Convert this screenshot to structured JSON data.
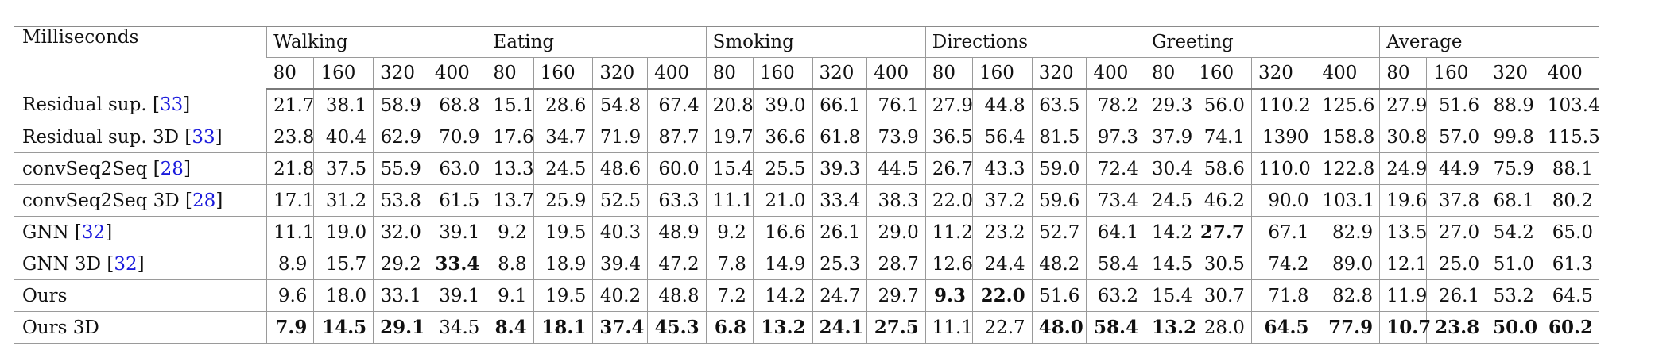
{
  "table": {
    "corner_label": "Milliseconds",
    "groups": [
      "Walking",
      "Eating",
      "Smoking",
      "Directions",
      "Greeting",
      "Average"
    ],
    "timesteps": [
      "80",
      "160",
      "320",
      "400"
    ],
    "rows": [
      {
        "name": "Residual sup.",
        "ref": "33",
        "values": [
          "21.7",
          "38.1",
          "58.9",
          "68.8",
          "15.1",
          "28.6",
          "54.8",
          "67.4",
          "20.8",
          "39.0",
          "66.1",
          "76.1",
          "27.9",
          "44.8",
          "63.5",
          "78.2",
          "29.3",
          "56.0",
          "110.2",
          "125.6",
          "27.9",
          "51.6",
          "88.9",
          "103.4"
        ],
        "bold": []
      },
      {
        "name": "Residual sup. 3D",
        "ref": "33",
        "values": [
          "23.8",
          "40.4",
          "62.9",
          "70.9",
          "17.6",
          "34.7",
          "71.9",
          "87.7",
          "19.7",
          "36.6",
          "61.8",
          "73.9",
          "36.5",
          "56.4",
          "81.5",
          "97.3",
          "37.9",
          "74.1",
          "1390",
          "158.8",
          "30.8",
          "57.0",
          "99.8",
          "115.5"
        ],
        "bold": []
      },
      {
        "name": "convSeq2Seq",
        "ref": "28",
        "values": [
          "21.8",
          "37.5",
          "55.9",
          "63.0",
          "13.3",
          "24.5",
          "48.6",
          "60.0",
          "15.4",
          "25.5",
          "39.3",
          "44.5",
          "26.7",
          "43.3",
          "59.0",
          "72.4",
          "30.4",
          "58.6",
          "110.0",
          "122.8",
          "24.9",
          "44.9",
          "75.9",
          "88.1"
        ],
        "bold": []
      },
      {
        "name": "convSeq2Seq 3D",
        "ref": "28",
        "values": [
          "17.1",
          "31.2",
          "53.8",
          "61.5",
          "13.7",
          "25.9",
          "52.5",
          "63.3",
          "11.1",
          "21.0",
          "33.4",
          "38.3",
          "22.0",
          "37.2",
          "59.6",
          "73.4",
          "24.5",
          "46.2",
          "90.0",
          "103.1",
          "19.6",
          "37.8",
          "68.1",
          "80.2"
        ],
        "bold": []
      },
      {
        "name": "GNN",
        "ref": "32",
        "values": [
          "11.1",
          "19.0",
          "32.0",
          "39.1",
          "9.2",
          "19.5",
          "40.3",
          "48.9",
          "9.2",
          "16.6",
          "26.1",
          "29.0",
          "11.2",
          "23.2",
          "52.7",
          "64.1",
          "14.2",
          "27.7",
          "67.1",
          "82.9",
          "13.5",
          "27.0",
          "54.2",
          "65.0"
        ],
        "bold": [
          17
        ]
      },
      {
        "name": "GNN 3D",
        "ref": "32",
        "values": [
          "8.9",
          "15.7",
          "29.2",
          "33.4",
          "8.8",
          "18.9",
          "39.4",
          "47.2",
          "7.8",
          "14.9",
          "25.3",
          "28.7",
          "12.6",
          "24.4",
          "48.2",
          "58.4",
          "14.5",
          "30.5",
          "74.2",
          "89.0",
          "12.1",
          "25.0",
          "51.0",
          "61.3"
        ],
        "bold": [
          3
        ]
      },
      {
        "name": "Ours",
        "ref": "",
        "values": [
          "9.6",
          "18.0",
          "33.1",
          "39.1",
          "9.1",
          "19.5",
          "40.2",
          "48.8",
          "7.2",
          "14.2",
          "24.7",
          "29.7",
          "9.3",
          "22.0",
          "51.6",
          "63.2",
          "15.4",
          "30.7",
          "71.8",
          "82.8",
          "11.9",
          "26.1",
          "53.2",
          "64.5"
        ],
        "bold": [
          12,
          13
        ]
      },
      {
        "name": "Ours 3D",
        "ref": "",
        "values": [
          "7.9",
          "14.5",
          "29.1",
          "34.5",
          "8.4",
          "18.1",
          "37.4",
          "45.3",
          "6.8",
          "13.2",
          "24.1",
          "27.5",
          "11.1",
          "22.7",
          "48.0",
          "58.4",
          "13.2",
          "28.0",
          "64.5",
          "77.9",
          "10.7",
          "23.8",
          "50.0",
          "60.2"
        ],
        "bold": [
          0,
          1,
          2,
          4,
          5,
          6,
          7,
          8,
          9,
          10,
          11,
          14,
          15,
          16,
          18,
          19,
          20,
          21,
          22,
          23
        ]
      }
    ]
  }
}
